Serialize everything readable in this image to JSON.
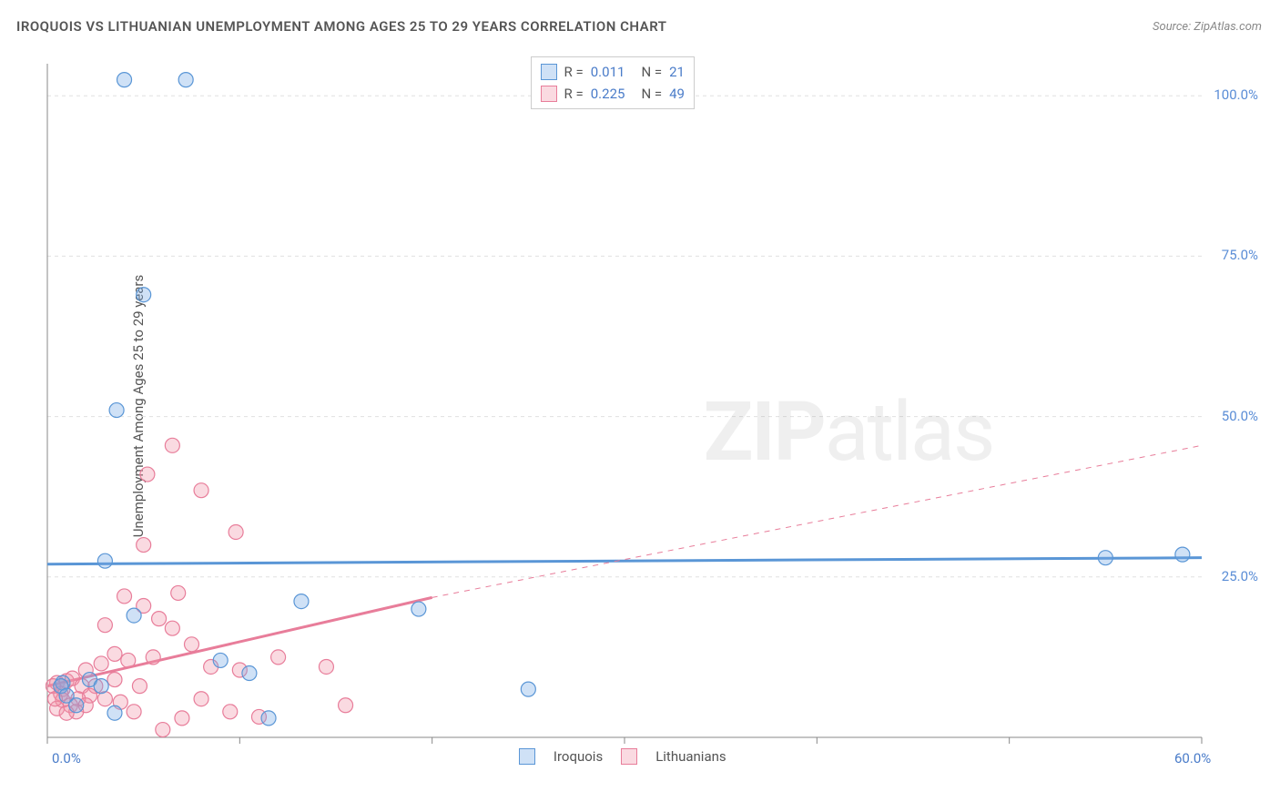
{
  "title": "IROQUOIS VS LITHUANIAN UNEMPLOYMENT AMONG AGES 25 TO 29 YEARS CORRELATION CHART",
  "source_label": "Source: ZipAtlas.com",
  "y_axis_label": "Unemployment Among Ages 25 to 29 years",
  "watermark_bold": "ZIP",
  "watermark_light": "atlas",
  "plot": {
    "x_min": 0,
    "x_max": 60,
    "y_min": 0,
    "y_max": 105,
    "x_ticks": [
      0,
      10,
      20,
      30,
      40,
      50,
      60
    ],
    "x_tick_labels_shown": {
      "0": "0.0%",
      "60": "60.0%"
    },
    "y_gridlines": [
      25,
      50,
      75,
      100
    ],
    "y_tick_labels": {
      "25": "25.0%",
      "50": "50.0%",
      "75": "75.0%",
      "100": "100.0%"
    },
    "grid_color": "#e0e0e0",
    "axis_color": "#888888",
    "background": "#ffffff"
  },
  "series": {
    "blue": {
      "label": "Iroquois",
      "fill": "rgba(118,170,230,0.35)",
      "stroke": "#5a96d6",
      "r_label": "R =",
      "r_value": "0.011",
      "n_label": "N =",
      "n_value": "21",
      "marker_radius": 8,
      "trend": {
        "solid_x1": 0,
        "solid_y1": 27.0,
        "solid_x2": 60,
        "solid_y2": 28.0,
        "line_width": 3
      },
      "points": [
        [
          4.0,
          102.5
        ],
        [
          7.2,
          102.5
        ],
        [
          5.0,
          69.0
        ],
        [
          3.6,
          51.0
        ],
        [
          3.0,
          27.5
        ],
        [
          55.0,
          28.0
        ],
        [
          59.0,
          28.5
        ],
        [
          4.5,
          19.0
        ],
        [
          13.2,
          21.2
        ],
        [
          19.3,
          20.0
        ],
        [
          9.0,
          12.0
        ],
        [
          10.5,
          10.0
        ],
        [
          11.5,
          3.0
        ],
        [
          2.2,
          9.0
        ],
        [
          0.8,
          8.5
        ],
        [
          0.7,
          8.0
        ],
        [
          1.0,
          6.5
        ],
        [
          3.5,
          3.8
        ],
        [
          25.0,
          7.5
        ],
        [
          2.8,
          8.0
        ],
        [
          1.5,
          5.0
        ]
      ]
    },
    "pink": {
      "label": "Lithuanians",
      "fill": "rgba(240,150,170,0.35)",
      "stroke": "#e87d9a",
      "r_label": "R =",
      "r_value": "0.225",
      "n_label": "N =",
      "n_value": "49",
      "marker_radius": 8,
      "trend": {
        "solid_x1": 0,
        "solid_y1": 8.0,
        "solid_x2": 20,
        "solid_y2": 21.8,
        "dashed_x2": 60,
        "dashed_y2": 45.5,
        "line_width": 3
      },
      "points": [
        [
          6.5,
          45.5
        ],
        [
          5.2,
          41.0
        ],
        [
          8.0,
          38.5
        ],
        [
          5.0,
          30.0
        ],
        [
          9.8,
          32.0
        ],
        [
          4.0,
          22.0
        ],
        [
          6.8,
          22.5
        ],
        [
          5.0,
          20.5
        ],
        [
          3.0,
          17.5
        ],
        [
          5.8,
          18.5
        ],
        [
          6.5,
          17.0
        ],
        [
          7.5,
          14.5
        ],
        [
          3.5,
          13.0
        ],
        [
          5.5,
          12.5
        ],
        [
          4.2,
          12.0
        ],
        [
          8.5,
          11.0
        ],
        [
          2.0,
          10.5
        ],
        [
          0.5,
          8.5
        ],
        [
          1.0,
          8.8
        ],
        [
          1.3,
          9.2
        ],
        [
          1.8,
          8.0
        ],
        [
          0.8,
          7.5
        ],
        [
          2.5,
          8.0
        ],
        [
          2.2,
          6.5
        ],
        [
          3.0,
          6.0
        ],
        [
          0.7,
          6.8
        ],
        [
          1.6,
          6.0
        ],
        [
          12.0,
          12.5
        ],
        [
          0.3,
          8.0
        ],
        [
          0.8,
          5.8
        ],
        [
          1.2,
          5.0
        ],
        [
          2.0,
          5.0
        ],
        [
          3.8,
          5.5
        ],
        [
          1.5,
          4.0
        ],
        [
          4.5,
          4.0
        ],
        [
          0.5,
          4.5
        ],
        [
          6.0,
          1.2
        ],
        [
          7.0,
          3.0
        ],
        [
          9.5,
          4.0
        ],
        [
          11.0,
          3.2
        ],
        [
          15.5,
          5.0
        ],
        [
          10.0,
          10.5
        ],
        [
          14.5,
          11.0
        ],
        [
          2.8,
          11.5
        ],
        [
          0.4,
          6.0
        ],
        [
          1.0,
          3.8
        ],
        [
          3.5,
          9.0
        ],
        [
          4.8,
          8.0
        ],
        [
          8.0,
          6.0
        ]
      ]
    }
  },
  "legend_top": {
    "value_color": "#4a7cc9",
    "label_color": "#555555"
  },
  "tick_label_color_x": "#4a7cc9",
  "tick_label_color_y": "#5a8dd6",
  "legend_bottom_color": "#555555"
}
